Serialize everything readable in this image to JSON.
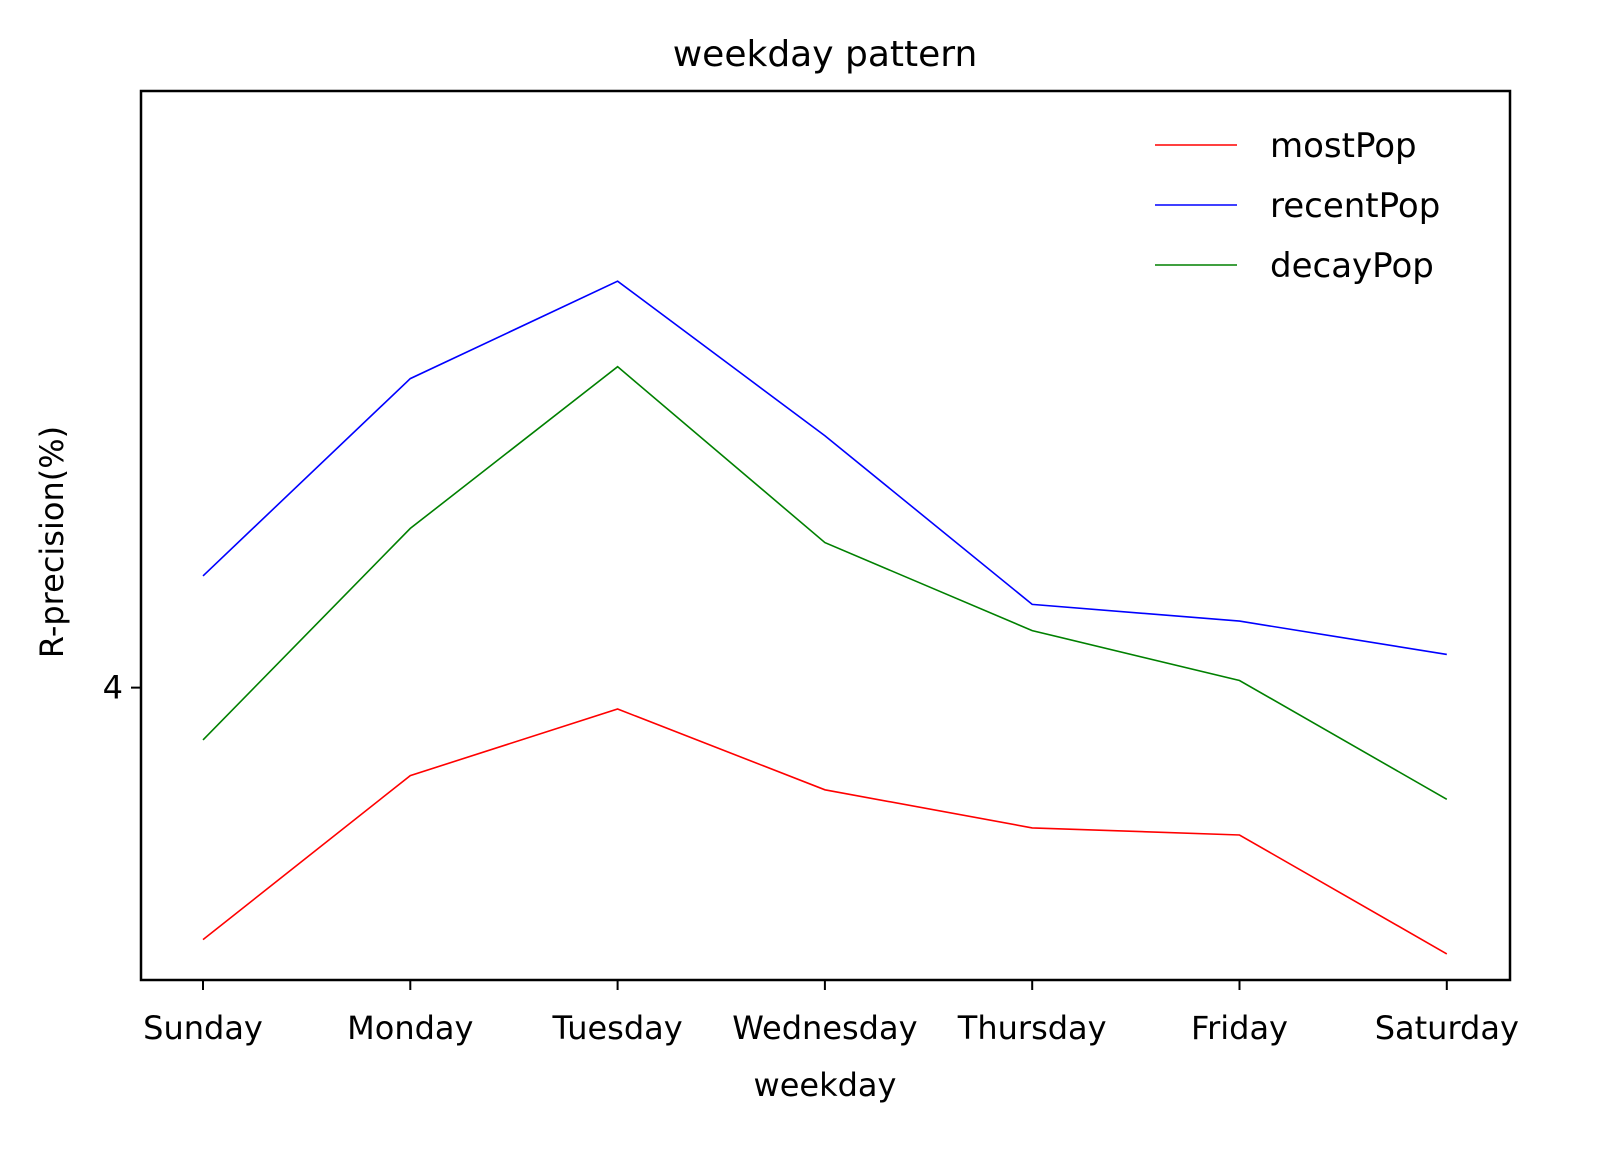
{
  "chart_data": {
    "type": "line",
    "title": "weekday pattern",
    "xlabel": "weekday",
    "ylabel": "R-precision(%)",
    "categories": [
      "Sunday",
      "Monday",
      "Tuesday",
      "Wednesday",
      "Thursday",
      "Friday",
      "Saturday"
    ],
    "yticks": [
      4
    ],
    "ylim": [
      2.77,
      6.51
    ],
    "legend_position": "upper right",
    "grid": false,
    "series": [
      {
        "name": "mostPop",
        "color": "#ff0000",
        "values": [
          2.94,
          3.63,
          3.91,
          3.57,
          3.41,
          3.38,
          2.88
        ]
      },
      {
        "name": "recentPop",
        "color": "#0000ff",
        "values": [
          4.47,
          5.3,
          5.71,
          5.06,
          4.35,
          4.28,
          4.14
        ]
      },
      {
        "name": "decayPop",
        "color": "#008000",
        "values": [
          3.78,
          4.67,
          5.35,
          4.61,
          4.24,
          4.03,
          3.53
        ]
      }
    ]
  }
}
